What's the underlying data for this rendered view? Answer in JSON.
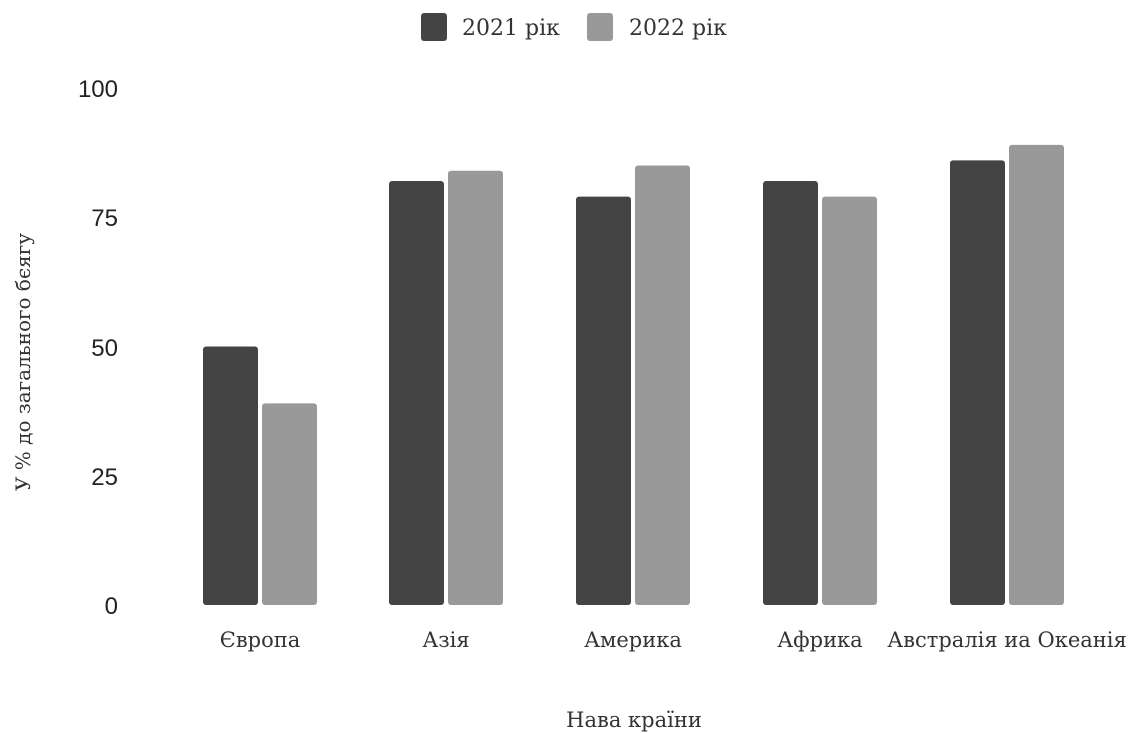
{
  "chart_data": {
    "type": "bar",
    "title": "",
    "xlabel": "Нава країни",
    "ylabel": "У % до загального бєягу",
    "categories": [
      "Європа",
      "Азія",
      "Америка",
      "Африка",
      "Австралія иа Океанія"
    ],
    "series": [
      {
        "name": "2021 рік",
        "color": "#444444",
        "values": [
          50,
          82,
          79,
          82,
          86
        ]
      },
      {
        "name": "2022 рік",
        "color": "#999999",
        "values": [
          39,
          84,
          85,
          79,
          89
        ]
      }
    ],
    "yticks": [
      "0",
      "25",
      "50",
      "75",
      "100"
    ],
    "ylim": [
      0,
      100
    ],
    "grid": false,
    "legend_position": "top-center"
  }
}
